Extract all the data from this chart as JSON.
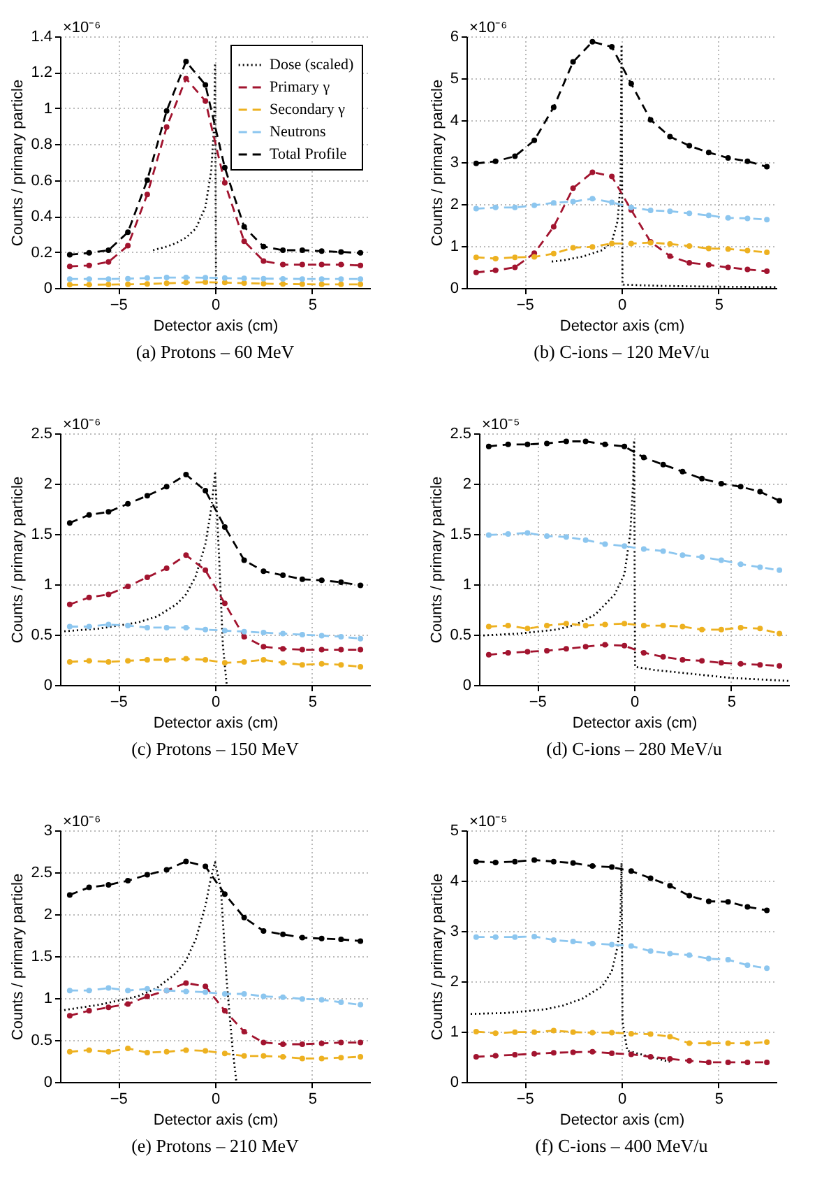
{
  "chart_data": [
    {
      "type": "line",
      "title": "(a) Protons – 60 MeV",
      "xlabel": "Detector axis (cm)",
      "ylabel": "Counts / primary particle",
      "annotations": [
        "×10⁻⁶"
      ],
      "xlim": [
        -8,
        8
      ],
      "xticks": [
        -5,
        0,
        5
      ],
      "ylim": [
        0,
        1.4
      ],
      "yticks": [
        0,
        0.2,
        0.4,
        0.6,
        0.8,
        1,
        1.2,
        1.4
      ],
      "grid": true,
      "legend": "top right",
      "marker": "circle",
      "line_style": "dashed",
      "x": [
        -7.5,
        -6.5,
        -5.5,
        -4.5,
        -3.5,
        -2.5,
        -1.5,
        -0.5,
        0.5,
        1.5,
        2.5,
        3.5,
        4.5,
        5.5,
        6.5,
        7.5
      ],
      "series": [
        {
          "name": "Dose (scaled)",
          "color": "#000000",
          "marker": "none",
          "line_style": "dotted",
          "x": [
            -3.2,
            -2.5,
            -2,
            -1.5,
            -1,
            -0.5,
            -0.2,
            -0.05,
            0,
            0.05
          ],
          "values": [
            0.21,
            0.23,
            0.25,
            0.28,
            0.33,
            0.45,
            0.65,
            0.9,
            1.25,
            0
          ]
        },
        {
          "name": "Primary γ",
          "color": "#a2142f",
          "values": [
            0.12,
            0.125,
            0.145,
            0.235,
            0.52,
            0.895,
            1.165,
            1.04,
            0.585,
            0.26,
            0.15,
            0.13,
            0.13,
            0.13,
            0.13,
            0.125
          ]
        },
        {
          "name": "Secondary γ",
          "color": "#edb120",
          "values": [
            0.018,
            0.018,
            0.019,
            0.02,
            0.022,
            0.026,
            0.03,
            0.032,
            0.03,
            0.027,
            0.024,
            0.022,
            0.021,
            0.02,
            0.02,
            0.02
          ]
        },
        {
          "name": "Neutrons",
          "color": "#8cc6ef",
          "values": [
            0.05,
            0.05,
            0.05,
            0.052,
            0.055,
            0.058,
            0.058,
            0.057,
            0.055,
            0.053,
            0.052,
            0.051,
            0.05,
            0.05,
            0.05,
            0.05
          ]
        },
        {
          "name": "Total Profile",
          "color": "#000000",
          "values": [
            0.185,
            0.195,
            0.21,
            0.31,
            0.6,
            0.985,
            1.26,
            1.13,
            0.67,
            0.34,
            0.23,
            0.21,
            0.21,
            0.205,
            0.2,
            0.195
          ]
        }
      ]
    },
    {
      "type": "line",
      "title": "(b) C-ions – 120 MeV/u",
      "xlabel": "Detector axis (cm)",
      "ylabel": "Counts / primary particle",
      "annotations": [
        "×10⁻⁶"
      ],
      "xlim": [
        -8,
        8
      ],
      "xticks": [
        -5,
        0,
        5
      ],
      "ylim": [
        0,
        6
      ],
      "yticks": [
        0,
        1,
        2,
        3,
        4,
        5,
        6
      ],
      "grid": true,
      "marker": "circle",
      "line_style": "dashed",
      "x": [
        -7.5,
        -6.5,
        -5.5,
        -4.5,
        -3.5,
        -2.5,
        -1.5,
        -0.5,
        0.5,
        1.5,
        2.5,
        3.5,
        4.5,
        5.5,
        6.5,
        7.5
      ],
      "series": [
        {
          "color": "#000000",
          "marker": "none",
          "line_style": "dotted",
          "x": [
            -3.6,
            -3,
            -2,
            -1,
            -0.5,
            -0.2,
            -0.05,
            0,
            0.05,
            2,
            5,
            8
          ],
          "values": [
            0.63,
            0.66,
            0.75,
            0.9,
            1.1,
            1.6,
            2.5,
            5.8,
            0.08,
            0.05,
            0.03,
            0.02
          ]
        },
        {
          "color": "#a2142f",
          "values": [
            0.37,
            0.42,
            0.49,
            0.83,
            1.46,
            2.38,
            2.76,
            2.66,
            1.86,
            1.1,
            0.76,
            0.6,
            0.55,
            0.49,
            0.44,
            0.4
          ]
        },
        {
          "color": "#edb120",
          "values": [
            0.73,
            0.7,
            0.73,
            0.74,
            0.82,
            0.96,
            0.98,
            1.06,
            1.06,
            1.08,
            1.05,
            1.0,
            0.94,
            0.93,
            0.89,
            0.85
          ]
        },
        {
          "color": "#8cc6ef",
          "values": [
            1.89,
            1.92,
            1.92,
            1.97,
            2.03,
            2.06,
            2.13,
            2.04,
            1.92,
            1.85,
            1.83,
            1.78,
            1.73,
            1.67,
            1.66,
            1.63
          ]
        },
        {
          "color": "#000000",
          "values": [
            2.97,
            3.02,
            3.14,
            3.52,
            4.31,
            5.39,
            5.87,
            5.75,
            4.87,
            4.01,
            3.61,
            3.39,
            3.23,
            3.1,
            3.02,
            2.89
          ]
        }
      ]
    },
    {
      "type": "line",
      "title": "(c) Protons – 150 MeV",
      "xlabel": "Detector axis (cm)",
      "ylabel": "Counts / primary particle",
      "annotations": [
        "×10⁻⁶"
      ],
      "xlim": [
        -8,
        8
      ],
      "xticks": [
        -5,
        0,
        5
      ],
      "ylim": [
        0,
        2.5
      ],
      "yticks": [
        0,
        0.5,
        1,
        1.5,
        2,
        2.5
      ],
      "grid": true,
      "marker": "circle",
      "line_style": "dashed",
      "x": [
        -7.5,
        -6.5,
        -5.5,
        -4.5,
        -3.5,
        -2.5,
        -1.5,
        -0.5,
        0.5,
        1.5,
        2.5,
        3.5,
        4.5,
        5.5,
        6.5,
        7.5
      ],
      "series": [
        {
          "color": "#000000",
          "marker": "none",
          "line_style": "dotted",
          "x": [
            -8,
            -6,
            -4,
            -3,
            -2,
            -1.5,
            -1,
            -0.5,
            -0.2,
            0,
            0.2,
            0.4,
            0.6
          ],
          "values": [
            0.53,
            0.56,
            0.62,
            0.68,
            0.8,
            0.9,
            1.08,
            1.4,
            1.75,
            2.1,
            1.3,
            0.4,
            0
          ]
        },
        {
          "color": "#a2142f",
          "values": [
            0.8,
            0.87,
            0.9,
            0.98,
            1.07,
            1.16,
            1.29,
            1.14,
            0.81,
            0.48,
            0.38,
            0.36,
            0.35,
            0.35,
            0.35,
            0.35
          ]
        },
        {
          "color": "#edb120",
          "values": [
            0.23,
            0.24,
            0.23,
            0.24,
            0.25,
            0.25,
            0.26,
            0.25,
            0.22,
            0.23,
            0.25,
            0.22,
            0.2,
            0.21,
            0.2,
            0.18
          ]
        },
        {
          "color": "#8cc6ef",
          "values": [
            0.58,
            0.58,
            0.6,
            0.59,
            0.57,
            0.57,
            0.57,
            0.55,
            0.54,
            0.53,
            0.52,
            0.51,
            0.5,
            0.49,
            0.48,
            0.46
          ]
        },
        {
          "color": "#000000",
          "values": [
            1.61,
            1.69,
            1.72,
            1.8,
            1.88,
            1.97,
            2.09,
            1.93,
            1.57,
            1.24,
            1.13,
            1.09,
            1.05,
            1.04,
            1.02,
            0.99
          ]
        }
      ]
    },
    {
      "type": "line",
      "title": "(d) C-ions – 280 MeV/u",
      "xlabel": "Detector axis (cm)",
      "ylabel": "Counts / primary particle",
      "annotations": [
        "×10⁻⁵"
      ],
      "xlim": [
        -8,
        8
      ],
      "xticks": [
        -5,
        0,
        5
      ],
      "ylim": [
        0,
        2.5
      ],
      "yticks": [
        0,
        0.5,
        1,
        1.5,
        2,
        2.5
      ],
      "grid": true,
      "marker": "circle",
      "line_style": "dashed",
      "x": [
        -7.5,
        -6.5,
        -5.5,
        -4.5,
        -3.5,
        -2.5,
        -1.5,
        -0.5,
        0.5,
        1.5,
        2.5,
        3.5,
        4.5,
        5.5,
        6.5,
        7.5
      ],
      "series": [
        {
          "color": "#000000",
          "marker": "none",
          "line_style": "dotted",
          "x": [
            -8,
            -6,
            -4,
            -3,
            -2,
            -1,
            -0.5,
            -0.2,
            -0.05,
            0,
            0.05,
            1,
            3,
            5,
            8
          ],
          "values": [
            0.49,
            0.51,
            0.55,
            0.6,
            0.7,
            0.9,
            1.1,
            1.5,
            2.0,
            2.43,
            0.18,
            0.15,
            0.11,
            0.07,
            0.04
          ]
        },
        {
          "color": "#a2142f",
          "values": [
            0.3,
            0.32,
            0.33,
            0.34,
            0.36,
            0.38,
            0.4,
            0.39,
            0.32,
            0.28,
            0.25,
            0.24,
            0.22,
            0.21,
            0.2,
            0.19
          ]
        },
        {
          "color": "#edb120",
          "values": [
            0.58,
            0.59,
            0.56,
            0.59,
            0.61,
            0.59,
            0.6,
            0.61,
            0.59,
            0.59,
            0.58,
            0.55,
            0.55,
            0.57,
            0.56,
            0.51
          ]
        },
        {
          "color": "#8cc6ef",
          "values": [
            1.49,
            1.5,
            1.51,
            1.48,
            1.47,
            1.44,
            1.4,
            1.38,
            1.35,
            1.33,
            1.29,
            1.27,
            1.24,
            1.2,
            1.17,
            1.14
          ]
        },
        {
          "color": "#000000",
          "values": [
            2.37,
            2.39,
            2.39,
            2.4,
            2.42,
            2.42,
            2.39,
            2.37,
            2.26,
            2.19,
            2.12,
            2.05,
            2.0,
            1.97,
            1.92,
            1.83
          ]
        }
      ]
    },
    {
      "type": "line",
      "title": "(e) Protons – 210 MeV",
      "xlabel": "Detector axis (cm)",
      "ylabel": "Counts / primary particle",
      "annotations": [
        "×10⁻⁶"
      ],
      "xlim": [
        -8,
        8
      ],
      "xticks": [
        -5,
        0,
        5
      ],
      "ylim": [
        0,
        3
      ],
      "yticks": [
        0,
        0.5,
        1,
        1.5,
        2,
        2.5,
        3
      ],
      "grid": true,
      "marker": "circle",
      "line_style": "dashed",
      "x": [
        -7.5,
        -6.5,
        -5.5,
        -4.5,
        -3.5,
        -2.5,
        -1.5,
        -0.5,
        0.5,
        1.5,
        2.5,
        3.5,
        4.5,
        5.5,
        6.5,
        7.5
      ],
      "series": [
        {
          "color": "#000000",
          "marker": "none",
          "line_style": "dotted",
          "x": [
            -8,
            -6,
            -4,
            -3,
            -2,
            -1.5,
            -1,
            -0.5,
            -0.2,
            0,
            0.3,
            0.6,
            0.9,
            1.1
          ],
          "values": [
            0.85,
            0.92,
            1.02,
            1.12,
            1.3,
            1.45,
            1.7,
            2.1,
            2.45,
            2.62,
            2.3,
            1.2,
            0.4,
            0
          ]
        },
        {
          "color": "#a2142f",
          "values": [
            0.79,
            0.85,
            0.89,
            0.93,
            1.02,
            1.09,
            1.18,
            1.14,
            0.85,
            0.6,
            0.47,
            0.45,
            0.45,
            0.46,
            0.47,
            0.47
          ]
        },
        {
          "color": "#edb120",
          "values": [
            0.36,
            0.38,
            0.36,
            0.4,
            0.35,
            0.36,
            0.38,
            0.37,
            0.34,
            0.31,
            0.31,
            0.3,
            0.28,
            0.28,
            0.29,
            0.3
          ]
        },
        {
          "color": "#8cc6ef",
          "values": [
            1.09,
            1.09,
            1.12,
            1.09,
            1.11,
            1.09,
            1.08,
            1.07,
            1.05,
            1.05,
            1.02,
            1.01,
            0.99,
            0.98,
            0.95,
            0.92
          ]
        },
        {
          "color": "#000000",
          "values": [
            2.23,
            2.32,
            2.35,
            2.4,
            2.47,
            2.53,
            2.63,
            2.57,
            2.24,
            1.96,
            1.8,
            1.76,
            1.72,
            1.71,
            1.7,
            1.68
          ]
        }
      ]
    },
    {
      "type": "line",
      "title": "(f) C-ions – 400 MeV/u",
      "xlabel": "Detector axis (cm)",
      "ylabel": "Counts / primary particle",
      "annotations": [
        "×10⁻⁵"
      ],
      "xlim": [
        -8,
        8
      ],
      "xticks": [
        -5,
        0,
        5
      ],
      "ylim": [
        0,
        5
      ],
      "yticks": [
        0,
        1,
        2,
        3,
        4,
        5
      ],
      "grid": true,
      "marker": "circle",
      "line_style": "dashed",
      "x": [
        -7.5,
        -6.5,
        -5.5,
        -4.5,
        -3.5,
        -2.5,
        -1.5,
        -0.5,
        0.5,
        1.5,
        2.5,
        3.5,
        4.5,
        5.5,
        6.5,
        7.5
      ],
      "series": [
        {
          "color": "#000000",
          "marker": "none",
          "line_style": "dotted",
          "x": [
            -8,
            -6,
            -4,
            -3,
            -2,
            -1,
            -0.5,
            -0.2,
            -0.05,
            0,
            0.05,
            0.3,
            1,
            2,
            2.5
          ],
          "values": [
            1.35,
            1.37,
            1.44,
            1.52,
            1.66,
            1.9,
            2.2,
            2.7,
            3.3,
            4.35,
            1.2,
            0.62,
            0.55,
            0.45,
            0.4
          ]
        },
        {
          "color": "#a2142f",
          "values": [
            0.5,
            0.52,
            0.54,
            0.56,
            0.58,
            0.59,
            0.6,
            0.57,
            0.55,
            0.5,
            0.46,
            0.42,
            0.39,
            0.39,
            0.39,
            0.39
          ]
        },
        {
          "color": "#edb120",
          "values": [
            1.0,
            0.97,
            0.99,
            0.99,
            1.02,
            0.99,
            0.98,
            0.98,
            0.96,
            0.95,
            0.9,
            0.77,
            0.77,
            0.77,
            0.77,
            0.79
          ]
        },
        {
          "color": "#8cc6ef",
          "values": [
            2.88,
            2.88,
            2.88,
            2.89,
            2.82,
            2.79,
            2.75,
            2.73,
            2.7,
            2.6,
            2.55,
            2.52,
            2.45,
            2.43,
            2.32,
            2.26
          ]
        },
        {
          "color": "#000000",
          "values": [
            4.38,
            4.36,
            4.38,
            4.41,
            4.38,
            4.35,
            4.29,
            4.27,
            4.19,
            4.05,
            3.9,
            3.7,
            3.59,
            3.58,
            3.48,
            3.41
          ]
        }
      ]
    }
  ]
}
